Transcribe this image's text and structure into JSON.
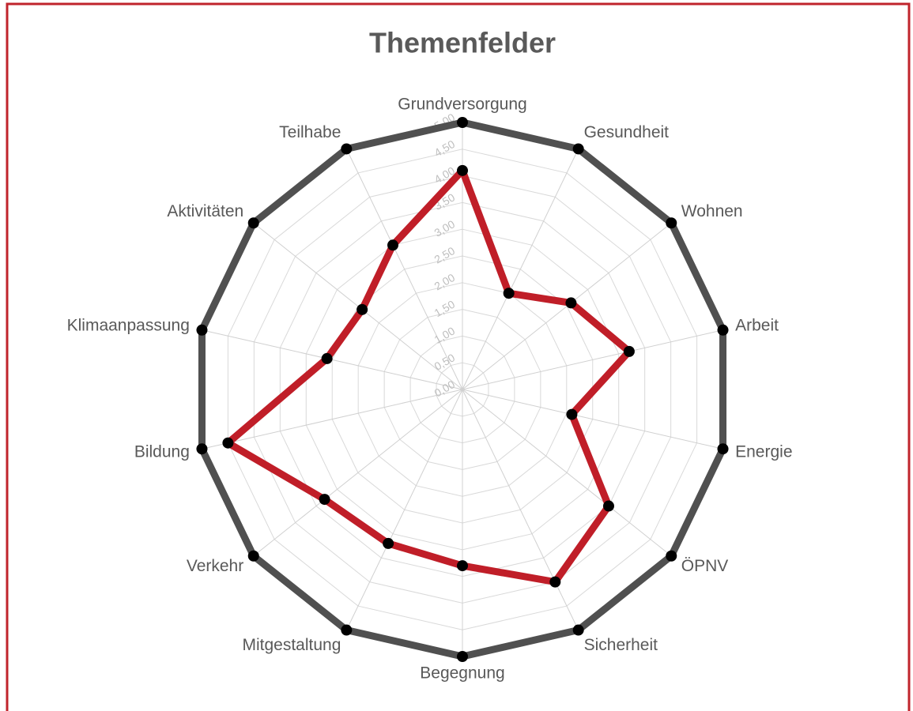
{
  "chart_data": {
    "type": "radar",
    "title": "Themenfelder",
    "categories": [
      "Grundversorgung",
      "Gesundheit",
      "Wohnen",
      "Arbeit",
      "Energie",
      "ÖPNV",
      "Sicherheit",
      "Begegnung",
      "Mitgestaltung",
      "Verkehr",
      "Bildung",
      "Klimaanpassung",
      "Aktivitäten",
      "Teilhabe"
    ],
    "series": [
      {
        "color": "#505050",
        "values": [
          5,
          5,
          5,
          5,
          5,
          5,
          5,
          5,
          5,
          5,
          5,
          5,
          5,
          5
        ]
      },
      {
        "color": "#c01e28",
        "values": [
          4.1,
          2.0,
          2.6,
          3.2,
          2.1,
          3.5,
          4.0,
          3.3,
          3.2,
          3.3,
          4.5,
          2.6,
          2.4,
          3.0
        ]
      }
    ],
    "ylim": [
      0,
      5
    ],
    "yticks": [
      {
        "value": 0,
        "label": "0,00"
      },
      {
        "value": 0.5,
        "label": "0,50"
      },
      {
        "value": 1,
        "label": "1,00"
      },
      {
        "value": 1.5,
        "label": "1,50"
      },
      {
        "value": 2,
        "label": "2,00"
      },
      {
        "value": 2.5,
        "label": "2,50"
      },
      {
        "value": 3,
        "label": "3,00"
      },
      {
        "value": 3.5,
        "label": "3,50"
      },
      {
        "value": 4,
        "label": "4,00"
      },
      {
        "value": 4.5,
        "label": "4,50"
      },
      {
        "value": 5,
        "label": "5,00"
      }
    ],
    "grid": true
  }
}
